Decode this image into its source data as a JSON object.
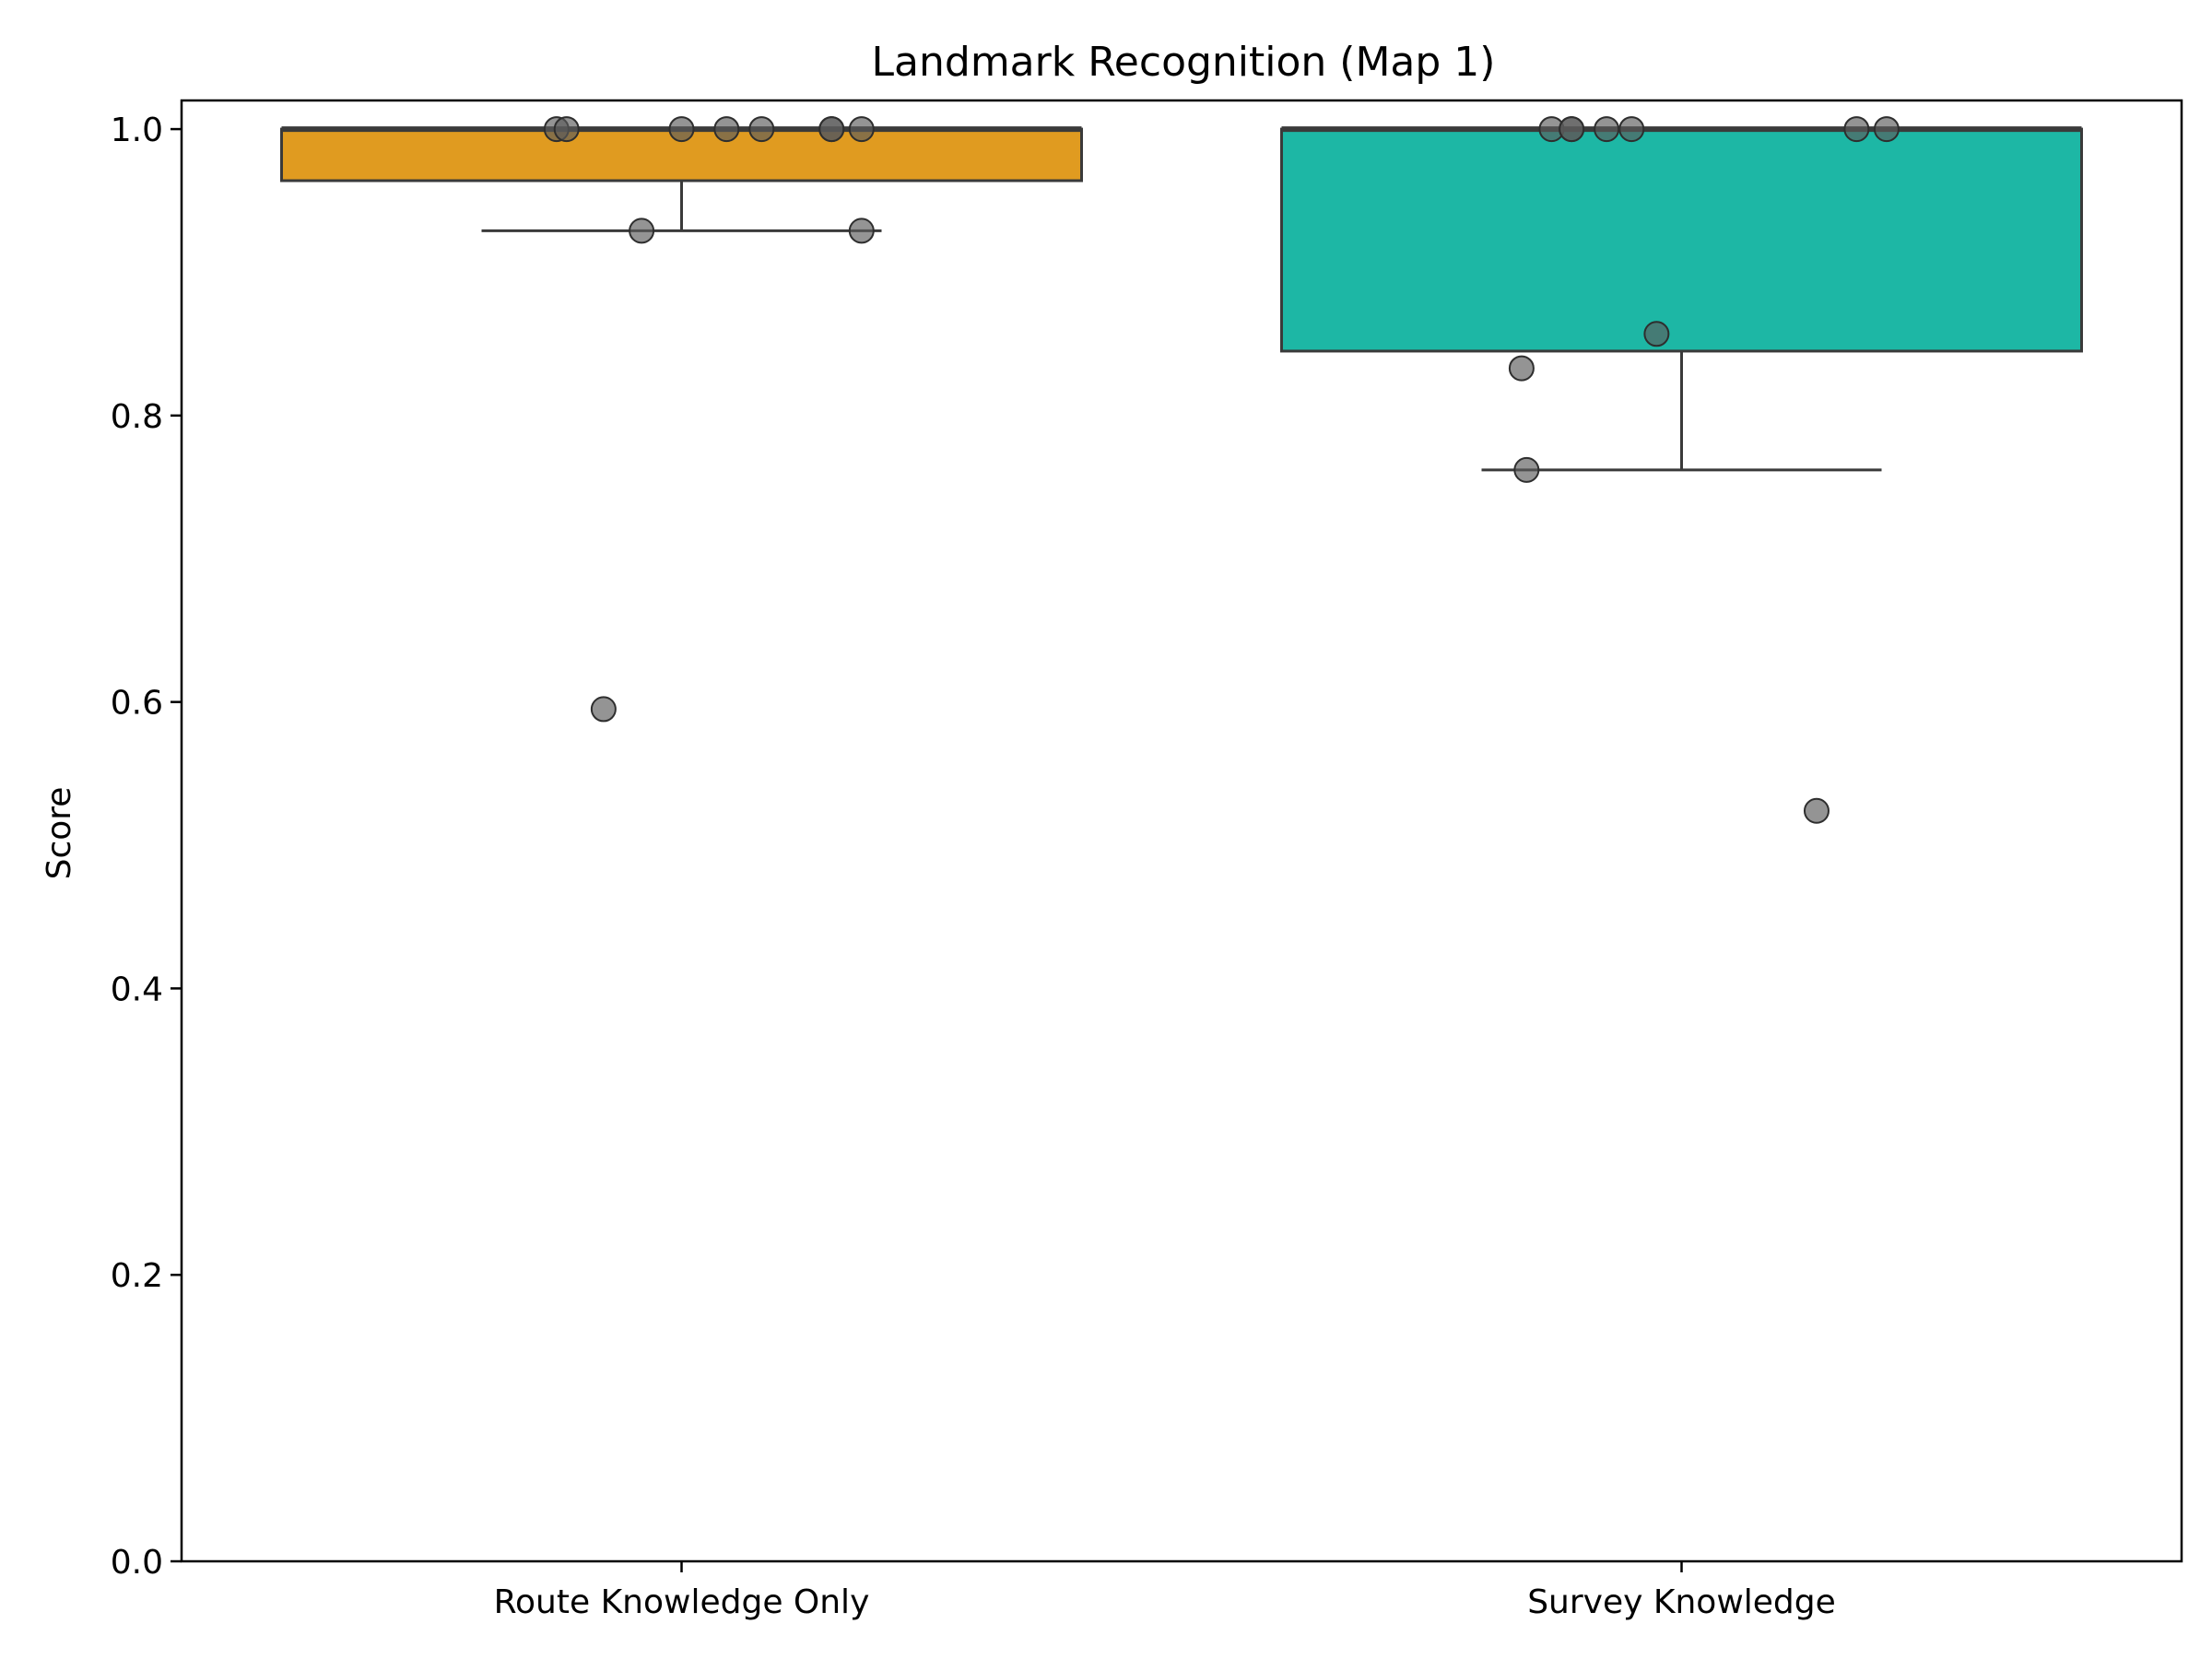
{
  "chart_data": {
    "type": "box",
    "title": "Landmark Recognition (Map 1)",
    "xlabel": "",
    "ylabel": "Score",
    "ylim": [
      0.0,
      1.02
    ],
    "yticks": [
      "0.0",
      "0.2",
      "0.4",
      "0.6",
      "0.8",
      "1.0"
    ],
    "categories": [
      "Route Knowledge Only",
      "Survey Knowledge"
    ],
    "grid": false,
    "legend": "none",
    "boxes": [
      {
        "category": "Route Knowledge Only",
        "color": "#E09B20",
        "q1": 0.964,
        "median": 1.0,
        "q3": 1.0,
        "whisker_low": 0.929,
        "whisker_high": 1.0
      },
      {
        "category": "Survey Knowledge",
        "color": "#1DB7A5",
        "q1": 0.845,
        "median": 1.0,
        "q3": 1.0,
        "whisker_low": 0.762,
        "whisker_high": 1.0
      }
    ],
    "points": [
      {
        "category": "Route Knowledge Only",
        "jitter": -0.125,
        "y": 1.0
      },
      {
        "category": "Route Knowledge Only",
        "jitter": -0.115,
        "y": 1.0
      },
      {
        "category": "Route Knowledge Only",
        "jitter": 0.0,
        "y": 1.0
      },
      {
        "category": "Route Knowledge Only",
        "jitter": 0.045,
        "y": 1.0
      },
      {
        "category": "Route Knowledge Only",
        "jitter": 0.08,
        "y": 1.0
      },
      {
        "category": "Route Knowledge Only",
        "jitter": 0.15,
        "y": 1.0
      },
      {
        "category": "Route Knowledge Only",
        "jitter": 0.15,
        "y": 1.0
      },
      {
        "category": "Route Knowledge Only",
        "jitter": 0.18,
        "y": 1.0
      },
      {
        "category": "Route Knowledge Only",
        "jitter": -0.04,
        "y": 0.929
      },
      {
        "category": "Route Knowledge Only",
        "jitter": 0.18,
        "y": 0.929
      },
      {
        "category": "Route Knowledge Only",
        "jitter": -0.078,
        "y": 0.595
      },
      {
        "category": "Survey Knowledge",
        "jitter": -0.13,
        "y": 1.0
      },
      {
        "category": "Survey Knowledge",
        "jitter": -0.11,
        "y": 1.0
      },
      {
        "category": "Survey Knowledge",
        "jitter": -0.11,
        "y": 1.0
      },
      {
        "category": "Survey Knowledge",
        "jitter": -0.075,
        "y": 1.0
      },
      {
        "category": "Survey Knowledge",
        "jitter": -0.05,
        "y": 1.0
      },
      {
        "category": "Survey Knowledge",
        "jitter": 0.175,
        "y": 1.0
      },
      {
        "category": "Survey Knowledge",
        "jitter": 0.205,
        "y": 1.0
      },
      {
        "category": "Survey Knowledge",
        "jitter": -0.025,
        "y": 0.857
      },
      {
        "category": "Survey Knowledge",
        "jitter": -0.16,
        "y": 0.833
      },
      {
        "category": "Survey Knowledge",
        "jitter": -0.155,
        "y": 0.762
      },
      {
        "category": "Survey Knowledge",
        "jitter": 0.135,
        "y": 0.524
      }
    ]
  }
}
